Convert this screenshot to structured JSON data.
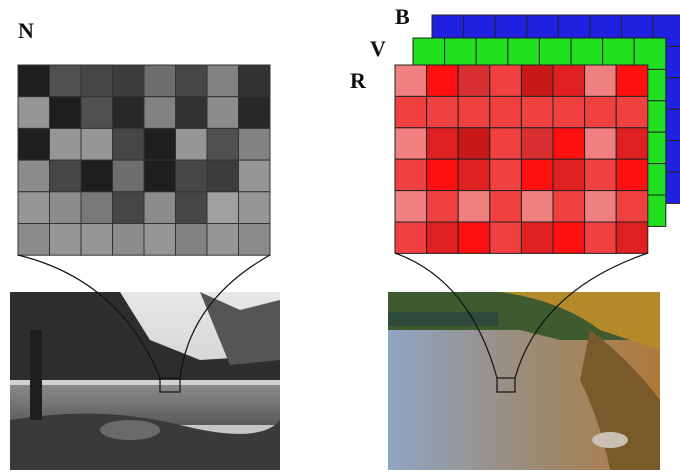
{
  "labels": {
    "gray": "N",
    "blue": "B",
    "green": "V",
    "red": "R"
  }
}
